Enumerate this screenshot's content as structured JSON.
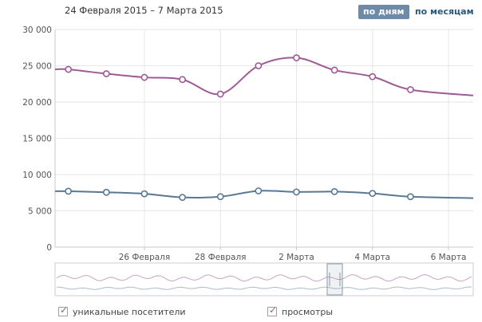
{
  "header": {
    "date_range": "24 Февраля 2015 – 7 Марта 2015",
    "period_buttons": [
      {
        "label": "по дням",
        "active": true
      },
      {
        "label": "по месяцам",
        "active": false
      }
    ]
  },
  "legend": [
    {
      "label": "уникальные посетители",
      "color": "#587896",
      "checked": true
    },
    {
      "label": "просмотры",
      "color": "#9e5a96",
      "checked": true
    }
  ],
  "chart_data": {
    "type": "line",
    "title": "",
    "xlabel": "",
    "ylabel": "",
    "ylim": [
      0,
      30000
    ],
    "y_ticks": [
      0,
      5000,
      10000,
      15000,
      20000,
      25000,
      30000
    ],
    "y_tick_labels": [
      "0",
      "5 000",
      "10 000",
      "15 000",
      "20 000",
      "25 000",
      "30 000"
    ],
    "x_tick_labels": [
      {
        "label": "26 Февраля",
        "day": 2
      },
      {
        "label": "28 Февраля",
        "day": 4
      },
      {
        "label": "2 Марта",
        "day": 6
      },
      {
        "label": "4 Марта",
        "day": 8
      },
      {
        "label": "6 Марта",
        "day": 10
      }
    ],
    "x_domain": [
      -0.35,
      10.65
    ],
    "grid": true,
    "series": [
      {
        "name": "просмотры",
        "color": "#9e5a96",
        "values": [
          24500,
          23900,
          23400,
          23100,
          21100,
          25000,
          26100,
          24400,
          23500,
          21700
        ],
        "end_value": 20900
      },
      {
        "name": "уникальные посетители",
        "color": "#587896",
        "values": [
          7700,
          7550,
          7350,
          6850,
          6950,
          7750,
          7600,
          7650,
          7400,
          6950
        ],
        "end_value": 6750
      }
    ]
  }
}
